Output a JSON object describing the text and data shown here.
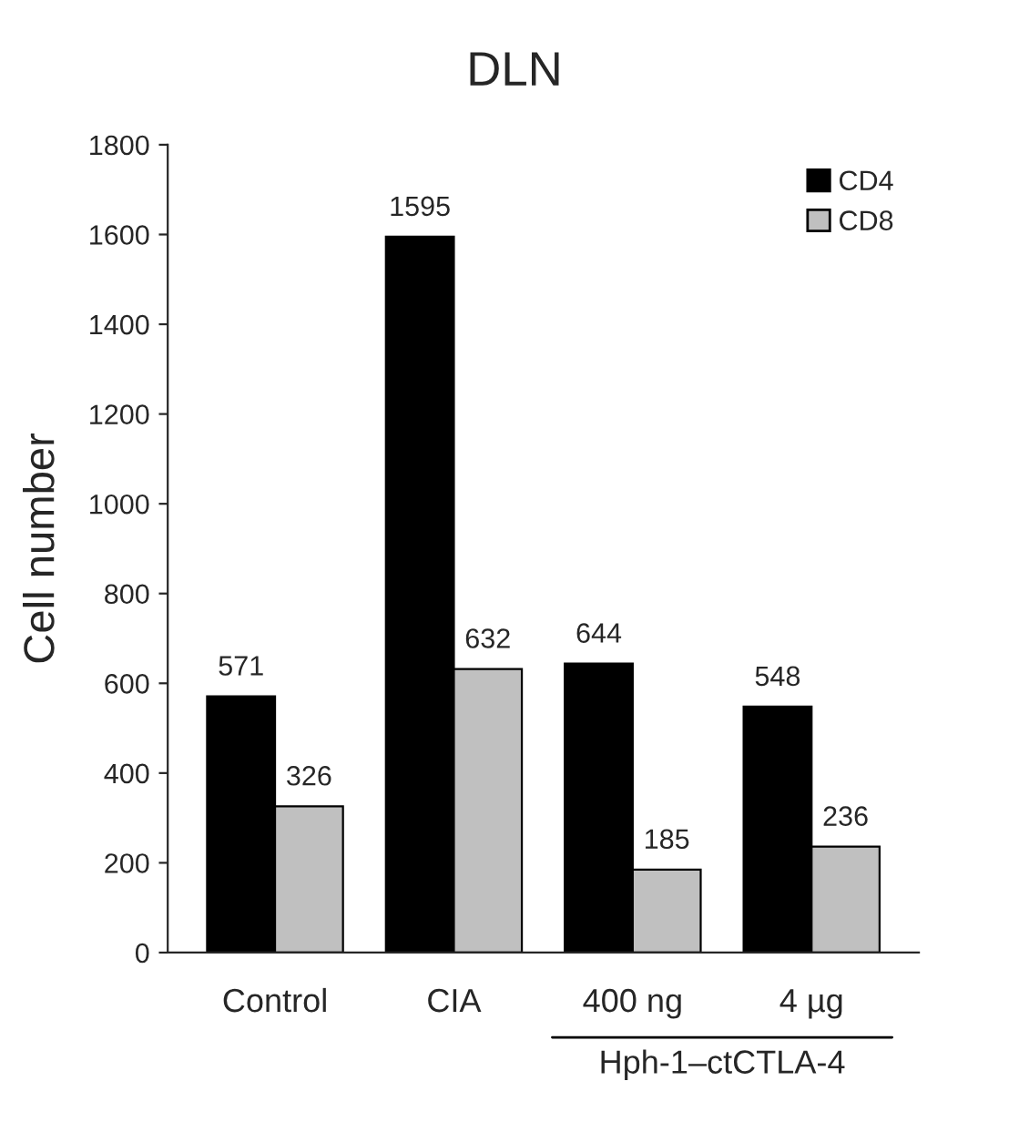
{
  "chart_data": {
    "type": "bar",
    "title": "DLN",
    "ylabel": "Cell number",
    "categories": [
      "Control",
      "CIA",
      "400 ng",
      "4 µg"
    ],
    "series": [
      {
        "name": "CD4",
        "color": "#000000",
        "values": [
          571,
          1595,
          644,
          548
        ]
      },
      {
        "name": "CD8",
        "color": "#c0c0c0",
        "values": [
          326,
          632,
          185,
          236
        ]
      }
    ],
    "ylim": [
      0,
      1800
    ],
    "yticks": [
      0,
      200,
      400,
      600,
      800,
      1000,
      1200,
      1400,
      1600,
      1800
    ],
    "data_labels": true,
    "legend": "top right",
    "grid": false,
    "annotations": [
      "Hph-1–ctCTLA-4"
    ]
  }
}
